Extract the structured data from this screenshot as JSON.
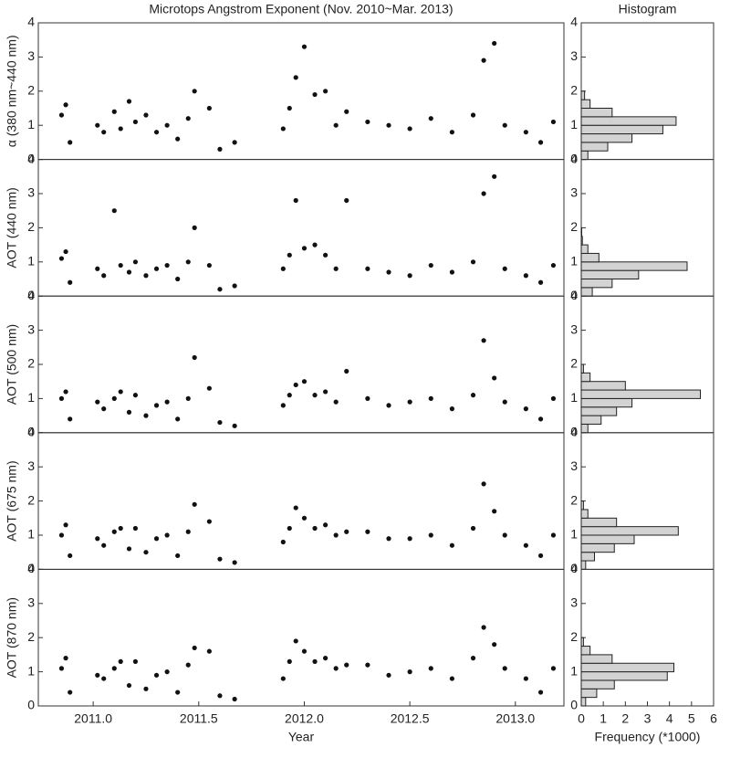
{
  "chart_data": [
    {
      "type": "scatter",
      "title": "Microtops Angstrom Exponent (Nov. 2010~Mar. 2013)",
      "ylabel": "α (380 nm~440 nm)",
      "color": "#111111",
      "x": [
        2010.85,
        2010.87,
        2010.89,
        2011.02,
        2011.05,
        2011.1,
        2011.13,
        2011.17,
        2011.2,
        2011.25,
        2011.3,
        2011.35,
        2011.4,
        2011.45,
        2011.48,
        2011.55,
        2011.6,
        2011.67,
        2011.9,
        2011.93,
        2011.96,
        2012.0,
        2012.05,
        2012.1,
        2012.15,
        2012.2,
        2012.3,
        2012.4,
        2012.5,
        2012.6,
        2012.7,
        2012.8,
        2012.85,
        2012.9,
        2012.95,
        2013.05,
        2013.12,
        2013.18
      ],
      "values": [
        1.3,
        1.6,
        0.5,
        1.0,
        0.8,
        1.4,
        0.9,
        1.7,
        1.1,
        1.3,
        0.8,
        1.0,
        0.6,
        1.2,
        2.0,
        1.5,
        0.3,
        0.5,
        0.9,
        1.5,
        2.4,
        3.3,
        1.9,
        2.0,
        1.0,
        1.4,
        1.1,
        1.0,
        0.9,
        1.2,
        0.8,
        1.3,
        2.9,
        3.4,
        1.0,
        0.8,
        0.5,
        1.1
      ],
      "xlim": [
        2010.74,
        2013.23
      ],
      "ylim": [
        0,
        4
      ],
      "yticks": [
        0,
        1,
        2,
        3,
        4
      ]
    },
    {
      "type": "scatter",
      "ylabel": "AOT (440 nm)",
      "color": "#111111",
      "x": [
        2010.85,
        2010.87,
        2010.89,
        2011.02,
        2011.05,
        2011.1,
        2011.13,
        2011.17,
        2011.2,
        2011.25,
        2011.3,
        2011.35,
        2011.4,
        2011.45,
        2011.48,
        2011.55,
        2011.6,
        2011.67,
        2011.9,
        2011.93,
        2011.96,
        2012.0,
        2012.05,
        2012.1,
        2012.15,
        2012.2,
        2012.3,
        2012.4,
        2012.5,
        2012.6,
        2012.7,
        2012.8,
        2012.85,
        2012.9,
        2012.95,
        2013.05,
        2013.12,
        2013.18
      ],
      "values": [
        1.1,
        1.3,
        0.4,
        0.8,
        0.6,
        2.5,
        0.9,
        0.7,
        1.0,
        0.6,
        0.8,
        0.9,
        0.5,
        1.0,
        2.0,
        0.9,
        0.2,
        0.3,
        0.8,
        1.2,
        2.8,
        1.4,
        1.5,
        1.2,
        0.8,
        2.8,
        0.8,
        0.7,
        0.6,
        0.9,
        0.7,
        1.0,
        3.0,
        3.5,
        0.8,
        0.6,
        0.4,
        0.9
      ],
      "xlim": [
        2010.74,
        2013.23
      ],
      "ylim": [
        0,
        4
      ],
      "yticks": [
        0,
        1,
        2,
        3,
        4
      ]
    },
    {
      "type": "scatter",
      "ylabel": "AOT (500 nm)",
      "color": "#111111",
      "x": [
        2010.85,
        2010.87,
        2010.89,
        2011.02,
        2011.05,
        2011.1,
        2011.13,
        2011.17,
        2011.2,
        2011.25,
        2011.3,
        2011.35,
        2011.4,
        2011.45,
        2011.48,
        2011.55,
        2011.6,
        2011.67,
        2011.9,
        2011.93,
        2011.96,
        2012.0,
        2012.05,
        2012.1,
        2012.15,
        2012.2,
        2012.3,
        2012.4,
        2012.5,
        2012.6,
        2012.7,
        2012.8,
        2012.85,
        2012.9,
        2012.95,
        2013.05,
        2013.12,
        2013.18
      ],
      "values": [
        1.0,
        1.2,
        0.4,
        0.9,
        0.7,
        1.0,
        1.2,
        0.6,
        1.1,
        0.5,
        0.8,
        0.9,
        0.4,
        1.0,
        2.2,
        1.3,
        0.3,
        0.2,
        0.8,
        1.1,
        1.4,
        1.5,
        1.1,
        1.2,
        0.9,
        1.8,
        1.0,
        0.8,
        0.9,
        1.0,
        0.7,
        1.1,
        2.7,
        1.6,
        0.9,
        0.7,
        0.4,
        1.0
      ],
      "xlim": [
        2010.74,
        2013.23
      ],
      "ylim": [
        0,
        4
      ],
      "yticks": [
        0,
        1,
        2,
        3,
        4
      ]
    },
    {
      "type": "scatter",
      "ylabel": "AOT (675 nm)",
      "color": "#111111",
      "x": [
        2010.85,
        2010.87,
        2010.89,
        2011.02,
        2011.05,
        2011.1,
        2011.13,
        2011.17,
        2011.2,
        2011.25,
        2011.3,
        2011.35,
        2011.4,
        2011.45,
        2011.48,
        2011.55,
        2011.6,
        2011.67,
        2011.9,
        2011.93,
        2011.96,
        2012.0,
        2012.05,
        2012.1,
        2012.15,
        2012.2,
        2012.3,
        2012.4,
        2012.5,
        2012.6,
        2012.7,
        2012.8,
        2012.85,
        2012.9,
        2012.95,
        2013.05,
        2013.12,
        2013.18
      ],
      "values": [
        1.0,
        1.3,
        0.4,
        0.9,
        0.7,
        1.1,
        1.2,
        0.6,
        1.2,
        0.5,
        0.9,
        1.0,
        0.4,
        1.1,
        1.9,
        1.4,
        0.3,
        0.2,
        0.8,
        1.2,
        1.8,
        1.5,
        1.2,
        1.3,
        1.0,
        1.1,
        1.1,
        0.9,
        0.9,
        1.0,
        0.7,
        1.2,
        2.5,
        1.7,
        1.0,
        0.7,
        0.4,
        1.0
      ],
      "xlim": [
        2010.74,
        2013.23
      ],
      "ylim": [
        0,
        4
      ],
      "yticks": [
        0,
        1,
        2,
        3,
        4
      ]
    },
    {
      "type": "scatter",
      "ylabel": "AOT (870 nm)",
      "xlabel": "Year",
      "color": "#111111",
      "x": [
        2010.85,
        2010.87,
        2010.89,
        2011.02,
        2011.05,
        2011.1,
        2011.13,
        2011.17,
        2011.2,
        2011.25,
        2011.3,
        2011.35,
        2011.4,
        2011.45,
        2011.48,
        2011.55,
        2011.6,
        2011.67,
        2011.9,
        2011.93,
        2011.96,
        2012.0,
        2012.05,
        2012.1,
        2012.15,
        2012.2,
        2012.3,
        2012.4,
        2012.5,
        2012.6,
        2012.7,
        2012.8,
        2012.85,
        2012.9,
        2012.95,
        2013.05,
        2013.12,
        2013.18
      ],
      "values": [
        1.1,
        1.4,
        0.4,
        0.9,
        0.8,
        1.1,
        1.3,
        0.6,
        1.3,
        0.5,
        0.9,
        1.0,
        0.4,
        1.2,
        1.7,
        1.6,
        0.3,
        0.2,
        0.8,
        1.3,
        1.9,
        1.6,
        1.3,
        1.4,
        1.1,
        1.2,
        1.2,
        0.9,
        1.0,
        1.1,
        0.8,
        1.4,
        2.3,
        1.8,
        1.1,
        0.8,
        0.4,
        1.1
      ],
      "xlim": [
        2010.74,
        2013.23
      ],
      "ylim": [
        0,
        4
      ],
      "yticks": [
        0,
        1,
        2,
        3,
        4
      ],
      "xticks": [
        {
          "value": 2011,
          "label": "2011.0"
        },
        {
          "value": 2011.5,
          "label": "2011.5"
        },
        {
          "value": 2012,
          "label": "2012.0"
        },
        {
          "value": 2012.5,
          "label": "2012.5"
        },
        {
          "value": 2013,
          "label": "2013.0"
        }
      ]
    },
    {
      "type": "histogram",
      "title": "Histogram",
      "orientation": "horizontal",
      "color": "#d3d3d3",
      "bins": [
        0,
        0.25,
        0.5,
        0.75,
        1.0,
        1.25,
        1.5,
        1.75,
        2.0
      ],
      "values": [
        0.3,
        1.2,
        2.3,
        3.7,
        4.3,
        1.4,
        0.4,
        0.15
      ],
      "xlim": [
        0,
        6
      ],
      "ylim": [
        0,
        4
      ],
      "yticks": [
        0,
        1,
        2,
        3,
        4
      ]
    },
    {
      "type": "histogram",
      "orientation": "horizontal",
      "color": "#d3d3d3",
      "bins": [
        0,
        0.25,
        0.5,
        0.75,
        1.0,
        1.25,
        1.5,
        1.75,
        2.0
      ],
      "values": [
        0.5,
        1.4,
        2.6,
        4.8,
        0.8,
        0.3,
        0.05,
        0.02
      ],
      "xlim": [
        0,
        6
      ],
      "ylim": [
        0,
        4
      ],
      "yticks": [
        0,
        1,
        2,
        3,
        4
      ]
    },
    {
      "type": "histogram",
      "orientation": "horizontal",
      "color": "#d3d3d3",
      "bins": [
        0,
        0.25,
        0.5,
        0.75,
        1.0,
        1.25,
        1.5,
        1.75,
        2.0
      ],
      "values": [
        0.3,
        0.9,
        1.6,
        2.3,
        5.4,
        2.0,
        0.4,
        0.1
      ],
      "xlim": [
        0,
        6
      ],
      "ylim": [
        0,
        4
      ],
      "yticks": [
        0,
        1,
        2,
        3,
        4
      ]
    },
    {
      "type": "histogram",
      "orientation": "horizontal",
      "color": "#d3d3d3",
      "bins": [
        0,
        0.25,
        0.5,
        0.75,
        1.0,
        1.25,
        1.5,
        1.75,
        2.0
      ],
      "values": [
        0.2,
        0.6,
        1.5,
        2.4,
        4.4,
        1.6,
        0.3,
        0.1
      ],
      "xlim": [
        0,
        6
      ],
      "ylim": [
        0,
        4
      ],
      "yticks": [
        0,
        1,
        2,
        3,
        4
      ]
    },
    {
      "type": "histogram",
      "orientation": "horizontal",
      "xlabel": "Frequency (*1000)",
      "color": "#d3d3d3",
      "bins": [
        0,
        0.25,
        0.5,
        0.75,
        1.0,
        1.25,
        1.5,
        1.75,
        2.0
      ],
      "values": [
        0.2,
        0.7,
        1.5,
        3.9,
        4.2,
        1.4,
        0.4,
        0.1
      ],
      "xlim": [
        0,
        6
      ],
      "ylim": [
        0,
        4
      ],
      "yticks": [
        0,
        1,
        2,
        3,
        4
      ],
      "xticks": [
        0,
        1,
        2,
        3,
        4,
        5,
        6
      ]
    }
  ]
}
